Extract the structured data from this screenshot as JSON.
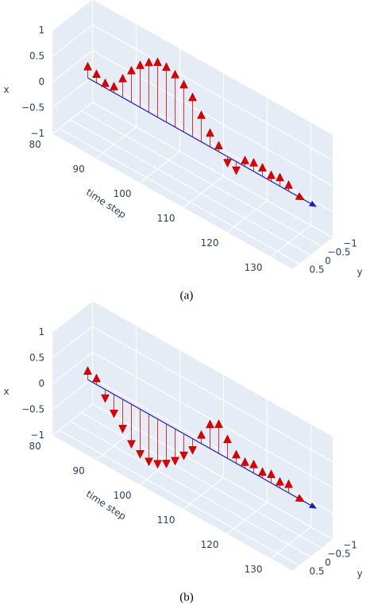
{
  "chart_data": [
    {
      "type": "cone3d",
      "caption": "(a)",
      "x_title": "x",
      "t_title": "time step",
      "y_title": "y",
      "time": [
        84,
        86,
        88,
        90,
        92,
        94,
        96,
        98,
        100,
        102,
        104,
        106,
        108,
        110,
        112,
        114,
        116,
        118,
        120,
        122,
        124,
        126,
        128,
        130,
        132
      ],
      "u": [
        0.15,
        0.1,
        0.02,
        0.05,
        0.3,
        0.55,
        0.75,
        0.9,
        1.0,
        1.0,
        0.95,
        0.85,
        0.7,
        0.45,
        0.2,
        0.05,
        -0.05,
        -0.1,
        0.05,
        0.1,
        0.1,
        0.05,
        0.1,
        0.05,
        0
      ],
      "v": [
        0,
        0,
        0,
        0,
        0,
        0,
        0,
        0,
        0,
        0,
        0,
        0,
        0,
        0,
        0,
        0,
        0,
        0,
        0,
        0,
        0,
        0,
        0,
        0,
        0
      ],
      "color": "#dd0000",
      "line_color": "#1f1fb4",
      "tlim": [
        80,
        135
      ],
      "xlim": [
        -1,
        1
      ],
      "ylim": [
        -1,
        0.8
      ],
      "tticks": [
        80,
        90,
        100,
        110,
        120,
        130
      ],
      "xticks": [
        1,
        0.5,
        0,
        {
          "value": -0.5,
          "label": "−0.5"
        },
        {
          "value": -1,
          "label": "−1"
        }
      ],
      "yticks": [
        {
          "value": -1,
          "label": "−1"
        },
        {
          "value": -0.5,
          "label": "−0.5"
        },
        0,
        0.5
      ]
    },
    {
      "type": "cone3d",
      "caption": "(b)",
      "x_title": "x",
      "t_title": "time step",
      "y_title": "y",
      "time": [
        84,
        86,
        88,
        90,
        92,
        94,
        96,
        98,
        100,
        102,
        104,
        106,
        108,
        110,
        112,
        114,
        116,
        118,
        120,
        122,
        124,
        126,
        128,
        130,
        132
      ],
      "u": [
        0.1,
        0.05,
        -0.1,
        -0.3,
        -0.5,
        -0.7,
        -0.8,
        -0.85,
        -0.8,
        -0.7,
        -0.55,
        -0.35,
        -0.15,
        0.1,
        0.4,
        0.5,
        0.3,
        0.1,
        0.05,
        0.1,
        0.05,
        0.1,
        0.05,
        0.1,
        0
      ],
      "v": [
        0,
        0,
        0,
        0,
        0,
        0,
        0,
        0,
        0,
        0,
        0,
        0,
        0,
        0,
        0,
        0,
        0,
        0,
        0,
        0,
        0,
        0,
        0,
        0,
        0
      ],
      "color": "#dd0000",
      "line_color": "#1f1fb4",
      "tlim": [
        80,
        135
      ],
      "xlim": [
        -1,
        1
      ],
      "ylim": [
        -1,
        0.8
      ],
      "tticks": [
        80,
        90,
        100,
        110,
        120,
        130
      ],
      "xticks": [
        1,
        0.5,
        0,
        {
          "value": -0.5,
          "label": "−0.5"
        },
        {
          "value": -1,
          "label": "−1"
        }
      ],
      "yticks": [
        {
          "value": -1,
          "label": "−1"
        },
        {
          "value": -0.5,
          "label": "−0.5"
        },
        0,
        0.5
      ]
    }
  ]
}
